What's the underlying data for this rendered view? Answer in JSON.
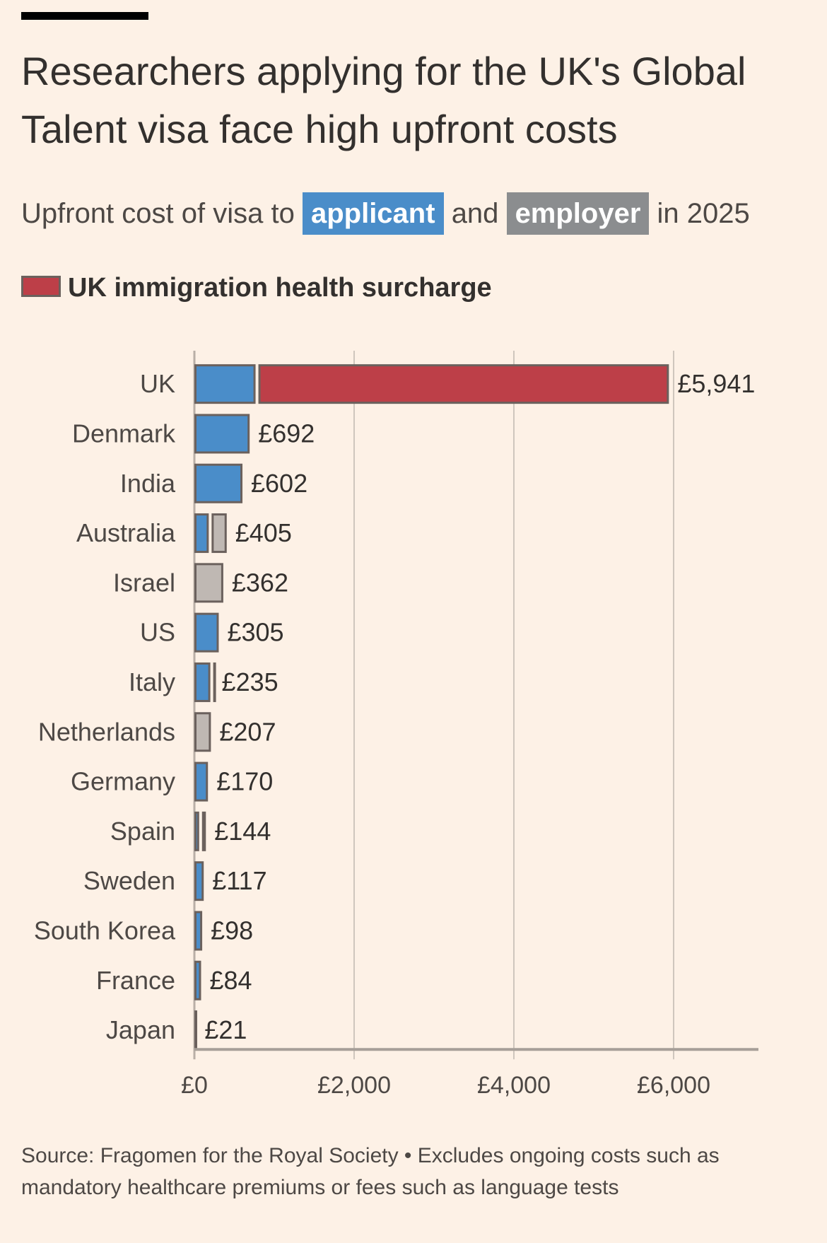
{
  "header": {
    "title": "Researchers applying for the UK's Global Talent visa face high upfront costs",
    "subtitle_prefix": "Upfront cost of visa to",
    "subtitle_applicant": "applicant",
    "subtitle_and": "and",
    "subtitle_employer": "employer",
    "subtitle_suffix": "in 2025",
    "legend_surcharge": "UK immigration health surcharge"
  },
  "source": "Source: Fragomen for the Royal Society • Excludes ongoing costs such as mandatory healthcare premiums or fees such as language tests",
  "colors": {
    "applicant": "#4a8dc9",
    "employer": "#bfb8b3",
    "surcharge": "#bd3f48",
    "stroke": "#6b615d",
    "grid": "#cfc6bd",
    "background": "#fdf1e6"
  },
  "chart_data": {
    "type": "bar",
    "orientation": "horizontal",
    "stacked": true,
    "title": "Researchers applying for the UK's Global Talent visa face high upfront costs",
    "subtitle": "Upfront cost of visa to applicant and employer in 2025",
    "xlabel": "",
    "ylabel": "",
    "xlim": [
      0,
      7000
    ],
    "x_ticks": [
      0,
      2000,
      4000,
      6000
    ],
    "x_tick_labels": [
      "£0",
      "£2,000",
      "£4,000",
      "£6,000"
    ],
    "grid": true,
    "categories": [
      "UK",
      "Denmark",
      "India",
      "Australia",
      "Israel",
      "US",
      "Italy",
      "Netherlands",
      "Germany",
      "Spain",
      "Sweden",
      "South Korea",
      "France",
      "Japan"
    ],
    "series": [
      {
        "name": "applicant",
        "values": [
          766,
          692,
          602,
          180,
          0,
          305,
          200,
          0,
          170,
          60,
          117,
          98,
          84,
          21
        ]
      },
      {
        "name": "employer",
        "values": [
          0,
          0,
          0,
          225,
          362,
          0,
          35,
          207,
          0,
          84,
          0,
          0,
          0,
          0
        ]
      },
      {
        "name": "UK immigration health surcharge",
        "values": [
          5175,
          0,
          0,
          0,
          0,
          0,
          0,
          0,
          0,
          0,
          0,
          0,
          0,
          0
        ]
      }
    ],
    "totals": [
      5941,
      692,
      602,
      405,
      362,
      305,
      235,
      207,
      170,
      144,
      117,
      98,
      84,
      21
    ],
    "total_labels": [
      "£5,941",
      "£692",
      "£602",
      "£405",
      "£362",
      "£305",
      "£235",
      "£207",
      "£170",
      "£144",
      "£117",
      "£98",
      "£84",
      "£21"
    ]
  }
}
